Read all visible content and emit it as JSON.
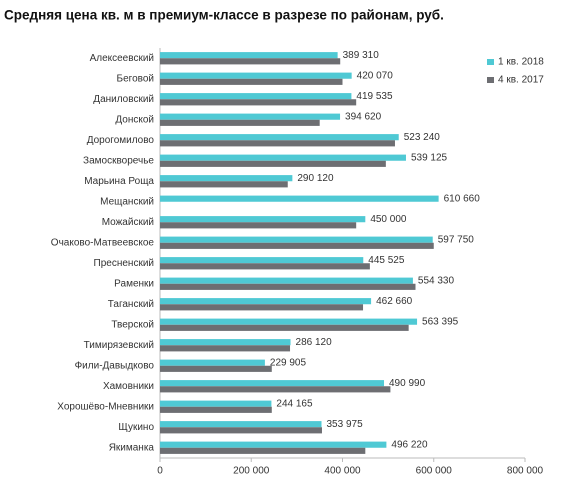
{
  "chart_data": {
    "type": "bar",
    "orientation": "horizontal",
    "title": "Средняя цена кв. м в премиум-классе в разрезе по районам, руб.",
    "categories": [
      "Алексеевский",
      "Беговой",
      "Даниловский",
      "Донской",
      "Дорогомилово",
      "Замоскворечье",
      "Марьина Роща",
      "Мещанский",
      "Можайский",
      "Очаково-Матвеевское",
      "Пресненский",
      "Раменки",
      "Таганский",
      "Тверской",
      "Тимирязевский",
      "Фили-Давыдково",
      "Хамовники",
      "Хорошёво-Мневники",
      "Щукино",
      "Якиманка"
    ],
    "series": [
      {
        "name": "1 кв. 2018",
        "color": "#4fc9d4",
        "values": [
          389310,
          420070,
          419535,
          394620,
          523240,
          539125,
          290120,
          610660,
          450000,
          597750,
          445525,
          554330,
          462660,
          563395,
          286120,
          229905,
          490990,
          244165,
          353975,
          496220
        ],
        "value_labels": [
          "389 310",
          "420 070",
          "419 535",
          "394 620",
          "523 240",
          "539 125",
          "290 120",
          "610 660",
          "450 000",
          "597 750",
          "445 525",
          "554 330",
          "462 660",
          "563 395",
          "286 120",
          "229 905",
          "490 990",
          "244 165",
          "353 975",
          "496 220"
        ]
      },
      {
        "name": "4 кв. 2017",
        "color": "#6d6e72",
        "values": [
          395000,
          400000,
          430000,
          350000,
          515000,
          495000,
          280000,
          null,
          430000,
          600000,
          460000,
          560000,
          445000,
          545000,
          285000,
          245000,
          505000,
          245000,
          355000,
          450000
        ]
      }
    ],
    "xlim": [
      0,
      800000
    ],
    "xticks": [
      0,
      {
        "value": 200000,
        "label": "200 000"
      },
      {
        "value": 400000,
        "label": "400 000"
      },
      {
        "value": 600000,
        "label": "600 000"
      },
      {
        "value": 800000,
        "label": "800 000"
      }
    ],
    "legend": "top-right"
  }
}
